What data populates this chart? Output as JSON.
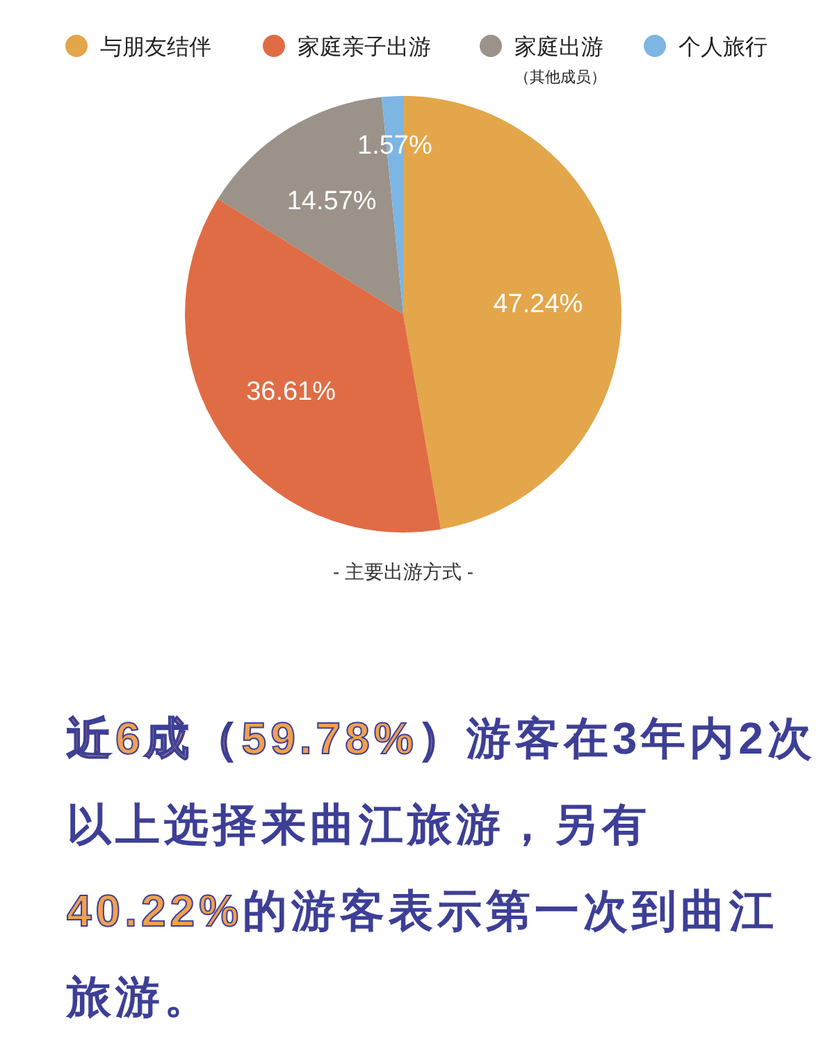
{
  "chart_data": {
    "type": "pie",
    "title": "- 主要出游方式 -",
    "categories": [
      "与朋友结伴",
      "家庭亲子出游",
      "家庭出游（其他成员）",
      "个人旅行"
    ],
    "values": [
      47.24,
      36.61,
      14.57,
      1.57
    ],
    "colors": [
      "#e3a64a",
      "#e06c45",
      "#9b9289",
      "#7db5e3"
    ],
    "value_labels": [
      "47.24%",
      "36.61%",
      "14.57%",
      "1.57%"
    ],
    "legend": "top",
    "annotations": [
      "近6成（59.78%）",
      "游客在3年内2次以上选择来曲江旅游，另有",
      "40.22%",
      "的游客表示第一次到曲江旅游。"
    ]
  }
}
